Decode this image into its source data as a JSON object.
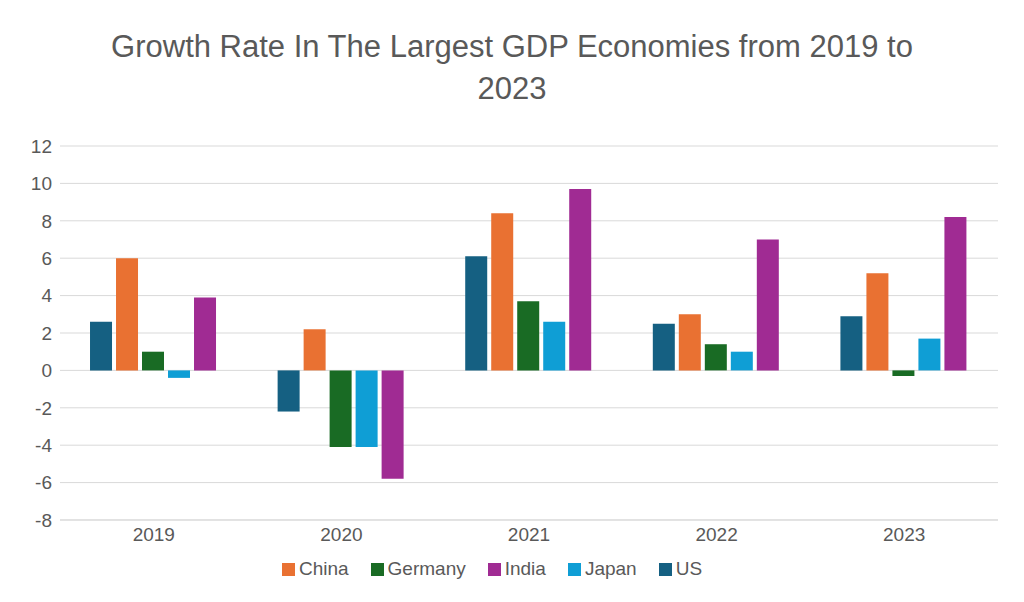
{
  "chart_data": {
    "type": "bar",
    "title": "Growth Rate In The Largest GDP Economies from 2019 to 2023",
    "categories": [
      "2019",
      "2020",
      "2021",
      "2022",
      "2023"
    ],
    "series": [
      {
        "name": "US",
        "color": "#156082",
        "values": [
          2.6,
          -2.2,
          6.1,
          2.5,
          2.9
        ]
      },
      {
        "name": "China",
        "color": "#e97132",
        "values": [
          6.0,
          2.2,
          8.4,
          3.0,
          5.2
        ]
      },
      {
        "name": "Germany",
        "color": "#196b24",
        "values": [
          1.0,
          -4.1,
          3.7,
          1.4,
          -0.3
        ]
      },
      {
        "name": "Japan",
        "color": "#0f9ed5",
        "values": [
          -0.4,
          -4.1,
          2.6,
          1.0,
          1.7
        ]
      },
      {
        "name": "India",
        "color": "#a02b93",
        "values": [
          3.9,
          -5.8,
          9.7,
          7.0,
          8.2
        ]
      }
    ],
    "ylim": [
      -8,
      12
    ],
    "yticks": [
      -8,
      -6,
      -4,
      -2,
      0,
      2,
      4,
      6,
      8,
      10,
      12
    ],
    "grid": true,
    "legend": "bottom"
  }
}
